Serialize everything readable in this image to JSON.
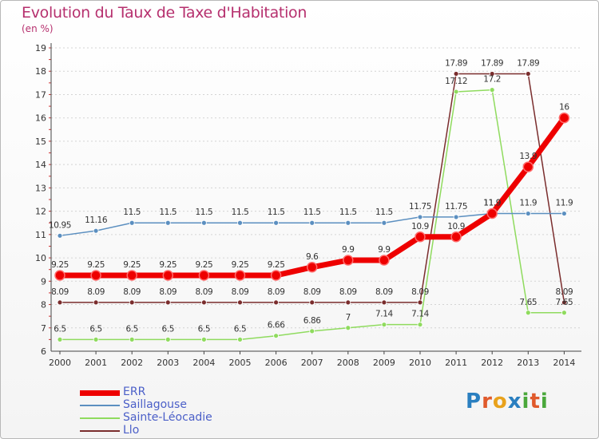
{
  "title": "Evolution du Taux de Taxe d'Habitation",
  "subtitle": "(en %)",
  "logo": {
    "text": "Proxiti",
    "letters": [
      {
        "ch": "P",
        "color": "#2a7fc0"
      },
      {
        "ch": "r",
        "color": "#e05a2c"
      },
      {
        "ch": "o",
        "color": "#e8a21c"
      },
      {
        "ch": "x",
        "color": "#2a7fc0"
      },
      {
        "ch": "i",
        "color": "#4aa83b"
      },
      {
        "ch": "t",
        "color": "#e05a2c"
      },
      {
        "ch": "i",
        "color": "#4aa83b"
      }
    ]
  },
  "chart_data": {
    "type": "line",
    "x": [
      "2000",
      "2001",
      "2002",
      "2003",
      "2004",
      "2005",
      "2006",
      "2007",
      "2008",
      "2009",
      "2010",
      "2011",
      "2012",
      "2013",
      "2014"
    ],
    "ylim": [
      6,
      19
    ],
    "yticks": [
      6,
      7,
      8,
      9,
      10,
      11,
      12,
      13,
      14,
      15,
      16,
      17,
      18,
      19
    ],
    "grid": "horizontal dashed",
    "legend_position": "bottom-left",
    "series": [
      {
        "name": "ERR",
        "color": "#ee0000",
        "width": 7,
        "values": [
          9.25,
          9.25,
          9.25,
          9.25,
          9.25,
          9.25,
          9.25,
          9.6,
          9.9,
          9.9,
          10.9,
          10.9,
          11.9,
          13.9,
          16
        ],
        "labels": [
          "9.25",
          "9.25",
          "9.25",
          "9.25",
          "9.25",
          "9.25",
          "9.25",
          "9.6",
          "9.9",
          "9.9",
          "10.9",
          "10.9",
          "11.9",
          "13.9",
          "16"
        ]
      },
      {
        "name": "Saillagouse",
        "color": "#5b8fc0",
        "width": 1.5,
        "values": [
          10.95,
          11.16,
          11.5,
          11.5,
          11.5,
          11.5,
          11.5,
          11.5,
          11.5,
          11.5,
          11.75,
          11.75,
          11.9,
          11.9,
          11.9
        ],
        "labels": [
          "10.95",
          "11.16",
          "11.5",
          "11.5",
          "11.5",
          "11.5",
          "11.5",
          "11.5",
          "11.5",
          "11.5",
          "11.75",
          "11.75",
          "11.9",
          "11.9",
          "11.9"
        ]
      },
      {
        "name": "Sainte-Léocadie",
        "color": "#8fdb5e",
        "width": 1.5,
        "values": [
          6.5,
          6.5,
          6.5,
          6.5,
          6.5,
          6.5,
          6.66,
          6.86,
          7,
          7.14,
          7.14,
          17.12,
          17.2,
          7.65,
          7.65
        ],
        "labels": [
          "6.5",
          "6.5",
          "6.5",
          "6.5",
          "6.5",
          "6.5",
          "6.66",
          "6.86",
          "7",
          "7.14",
          "7.14",
          "17.12",
          "17.2",
          "7.65",
          "7.65"
        ]
      },
      {
        "name": "Llo",
        "color": "#7a2d2d",
        "width": 1.5,
        "values": [
          8.09,
          8.09,
          8.09,
          8.09,
          8.09,
          8.09,
          8.09,
          8.09,
          8.09,
          8.09,
          8.09,
          17.89,
          17.89,
          17.89,
          8.09
        ],
        "labels": [
          "8.09",
          "8.09",
          "8.09",
          "8.09",
          "8.09",
          "8.09",
          "8.09",
          "8.09",
          "8.09",
          "8.09",
          "8.09",
          "17.89",
          "17.89",
          "17.89",
          "8.09"
        ]
      }
    ]
  }
}
